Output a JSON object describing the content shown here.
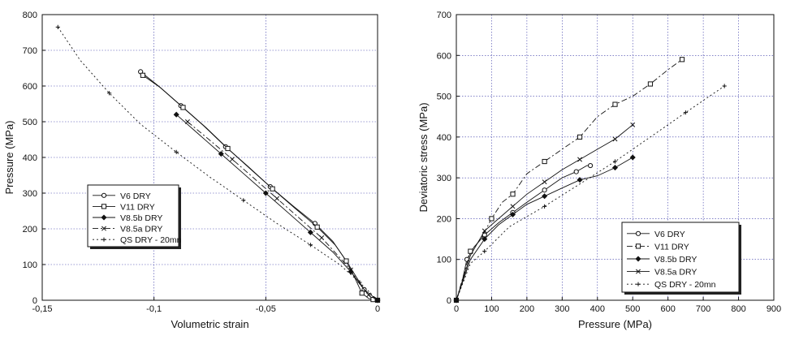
{
  "chart_data": [
    {
      "type": "line",
      "xlabel": "Volumetric strain",
      "ylabel": "Pressure (MPa)",
      "xlim": [
        -0.15,
        0
      ],
      "ylim": [
        0,
        800
      ],
      "x_ticks": [
        -0.15,
        -0.1,
        -0.05,
        0
      ],
      "x_tick_labels": [
        "-0,15",
        "-0,1",
        "-0,05",
        "0"
      ],
      "y_ticks": [
        0,
        100,
        200,
        300,
        400,
        500,
        600,
        700,
        800
      ],
      "y_tick_labels": [
        "0",
        "100",
        "200",
        "300",
        "400",
        "500",
        "600",
        "700",
        "800"
      ],
      "grid": true,
      "legend_position": "lower-left",
      "series": [
        {
          "name": "V6 DRY",
          "marker": "circle",
          "line": "solid",
          "x": [
            -0.106,
            -0.098,
            -0.088,
            -0.078,
            -0.068,
            -0.058,
            -0.048,
            -0.038,
            -0.028,
            -0.02,
            -0.014,
            -0.01,
            -0.006,
            -0.003,
            0
          ],
          "y": [
            640,
            600,
            545,
            490,
            430,
            375,
            318,
            265,
            215,
            165,
            110,
            70,
            30,
            8,
            0
          ]
        },
        {
          "name": "V11 DRY",
          "marker": "square",
          "line": "solid",
          "x": [
            -0.105,
            -0.097,
            -0.087,
            -0.077,
            -0.067,
            -0.057,
            -0.047,
            -0.037,
            -0.027,
            -0.019,
            -0.014,
            -0.01,
            -0.007,
            -0.004,
            -0.002,
            0
          ],
          "y": [
            630,
            595,
            540,
            485,
            425,
            368,
            312,
            258,
            205,
            155,
            110,
            60,
            20,
            5,
            2,
            0
          ]
        },
        {
          "name": "V8.5b DRY",
          "marker": "diamond",
          "line": "solid",
          "x": [
            -0.09,
            -0.08,
            -0.07,
            -0.06,
            -0.05,
            -0.04,
            -0.03,
            -0.02,
            -0.012,
            -0.006,
            0
          ],
          "y": [
            520,
            465,
            410,
            355,
            300,
            245,
            190,
            135,
            80,
            30,
            0
          ]
        },
        {
          "name": "V8.5a DRY",
          "marker": "x",
          "line": "dashdot",
          "x": [
            -0.085,
            -0.075,
            -0.065,
            -0.055,
            -0.045,
            -0.035,
            -0.025,
            -0.017,
            -0.012,
            -0.008,
            -0.004,
            0
          ],
          "y": [
            500,
            448,
            395,
            340,
            285,
            230,
            175,
            120,
            85,
            45,
            15,
            0
          ]
        },
        {
          "name": "QS DRY - 20mn",
          "marker": "plus",
          "line": "dotted",
          "x": [
            -0.143,
            -0.133,
            -0.12,
            -0.106,
            -0.09,
            -0.075,
            -0.06,
            -0.045,
            -0.03,
            -0.017,
            -0.008,
            0
          ],
          "y": [
            765,
            672,
            580,
            493,
            415,
            345,
            280,
            215,
            155,
            100,
            50,
            0
          ]
        }
      ]
    },
    {
      "type": "line",
      "xlabel": "Pressure (MPa)",
      "ylabel": "Deviatoric stress (MPa)",
      "xlim": [
        0,
        900
      ],
      "ylim": [
        0,
        700
      ],
      "x_ticks": [
        0,
        100,
        200,
        300,
        400,
        500,
        600,
        700,
        800,
        900
      ],
      "x_tick_labels": [
        "0",
        "100",
        "200",
        "300",
        "400",
        "500",
        "600",
        "700",
        "800",
        "900"
      ],
      "y_ticks": [
        0,
        100,
        200,
        300,
        400,
        500,
        600,
        700
      ],
      "y_tick_labels": [
        "0",
        "100",
        "200",
        "300",
        "400",
        "500",
        "600",
        "700"
      ],
      "grid": true,
      "legend_position": "lower-right",
      "series": [
        {
          "name": "V6 DRY",
          "marker": "circle",
          "line": "solid",
          "x": [
            0,
            15,
            30,
            50,
            80,
            120,
            160,
            200,
            250,
            300,
            340,
            370,
            380
          ],
          "y": [
            0,
            40,
            100,
            130,
            160,
            190,
            215,
            240,
            270,
            300,
            315,
            330,
            330
          ]
        },
        {
          "name": "V11 DRY",
          "marker": "square",
          "line": "dashdot",
          "x": [
            0,
            20,
            40,
            70,
            100,
            130,
            160,
            200,
            250,
            300,
            350,
            400,
            450,
            500,
            550,
            600,
            640
          ],
          "y": [
            0,
            60,
            120,
            150,
            200,
            240,
            260,
            310,
            340,
            370,
            400,
            450,
            480,
            500,
            530,
            565,
            590
          ]
        },
        {
          "name": "V8.5b DRY",
          "marker": "diamond",
          "line": "solid",
          "x": [
            0,
            40,
            80,
            120,
            160,
            200,
            250,
            300,
            350,
            400,
            450,
            500
          ],
          "y": [
            0,
            100,
            150,
            185,
            210,
            235,
            255,
            275,
            295,
            305,
            325,
            350
          ]
        },
        {
          "name": "V8.5a DRY",
          "marker": "x",
          "line": "solid",
          "x": [
            0,
            40,
            80,
            120,
            160,
            200,
            250,
            300,
            350,
            400,
            450,
            500
          ],
          "y": [
            0,
            110,
            170,
            200,
            230,
            260,
            290,
            320,
            345,
            370,
            395,
            430
          ]
        },
        {
          "name": "QS DRY - 20mn",
          "marker": "plus",
          "line": "dotted",
          "x": [
            0,
            40,
            80,
            150,
            250,
            350,
            450,
            550,
            650,
            760
          ],
          "y": [
            0,
            90,
            120,
            180,
            230,
            285,
            340,
            400,
            460,
            525
          ]
        }
      ]
    }
  ]
}
